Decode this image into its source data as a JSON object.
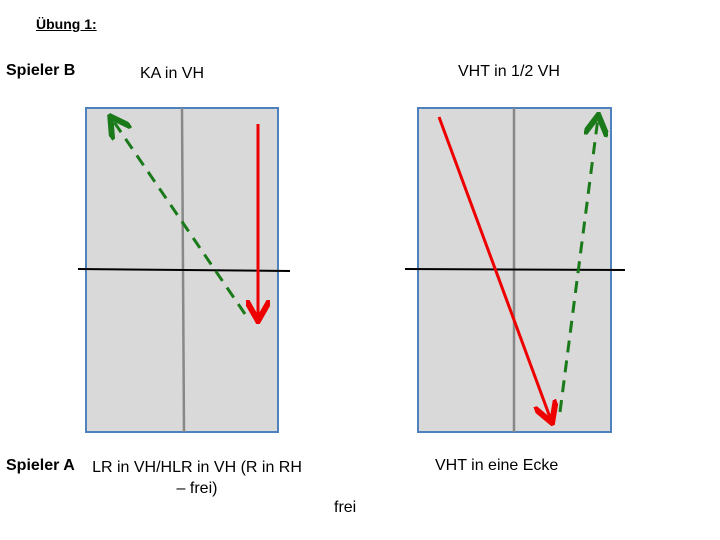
{
  "title": "Übung 1:",
  "player_b": "Spieler B",
  "player_a": "Spieler A",
  "left": {
    "top_label": "KA in VH",
    "bottom_label": "LR in VH/HLR in VH (R in RH – frei)"
  },
  "right": {
    "top_label": "VHT in 1/2 VH",
    "bottom_label": "VHT in eine Ecke"
  },
  "footer": "frei"
}
